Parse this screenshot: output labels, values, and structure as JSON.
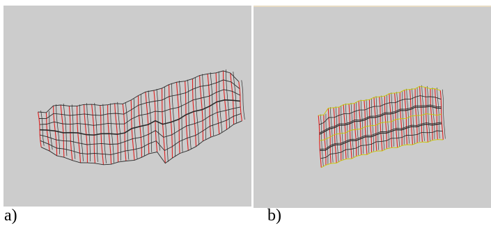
{
  "figure": {
    "panel_a_label": "a)",
    "panel_b_label": "b)"
  },
  "icons": {
    "panel_a": "wireframe-mesh-icon",
    "panel_b": "wireframe-mesh-icon"
  },
  "colors": {
    "background": "#cccccc",
    "mesh_dark": "#2a2a2a",
    "mesh_red": "#e02020",
    "mesh_yellow": "#c8c800"
  }
}
